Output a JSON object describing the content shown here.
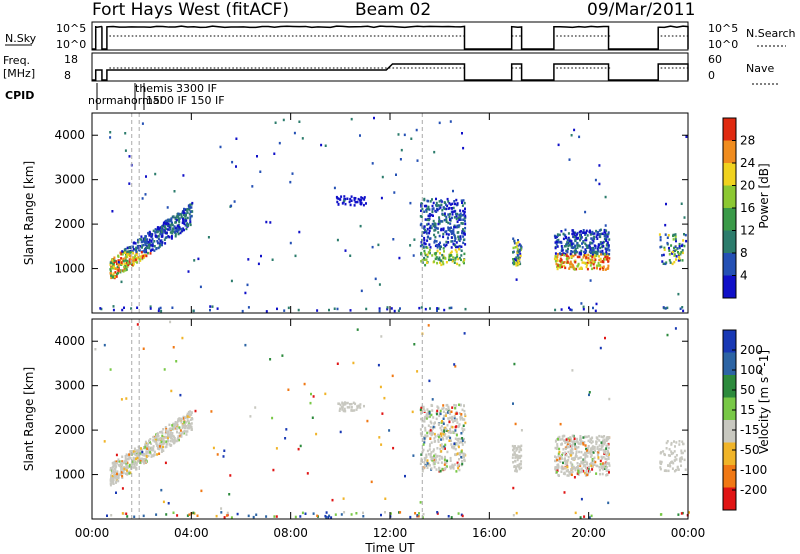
{
  "header": {
    "station": "Fort Hays West (fitACF)",
    "beam": "Beam 02",
    "date": "09/Mar/2011"
  },
  "strip_panels": {
    "nsky": {
      "left_label": "N.Sky",
      "ticks": [
        "10^5",
        "10^0"
      ],
      "right_label": "N.Search",
      "right_ticks": [
        "10^5",
        "10^0"
      ]
    },
    "freq": {
      "left_label_1": "Freq.",
      "left_label_2": "[MHz]",
      "ticks": [
        "18",
        "8"
      ],
      "right_label": "Nave",
      "right_ticks": [
        "60",
        "0"
      ]
    },
    "cpid": {
      "label": "CPID",
      "modes": [
        "normal",
        "themis 3300 IF",
        "normal",
        "1500 IF 150 IF"
      ]
    }
  },
  "chart_data": [
    {
      "type": "heatmap",
      "name": "power",
      "ylabel": "Slant Range [km]",
      "ylim": [
        0,
        4500
      ],
      "yticks": [
        1000,
        2000,
        3000,
        4000
      ],
      "xlim": [
        0,
        24
      ],
      "colorbar_label": "Power [dB]",
      "colorbar_ticks": [
        "4",
        "8",
        "12",
        "16",
        "20",
        "24",
        "28"
      ],
      "colorbar_range": [
        0,
        32
      ]
    },
    {
      "type": "heatmap",
      "name": "velocity",
      "ylabel": "Slant Range [km]",
      "ylim": [
        0,
        4500
      ],
      "yticks": [
        1000,
        2000,
        3000,
        4000
      ],
      "xlabel": "Time UT",
      "xlim": [
        0,
        24
      ],
      "xticks": [
        "00:00",
        "04:00",
        "08:00",
        "12:00",
        "16:00",
        "20:00",
        "00:00"
      ],
      "colorbar_label": "Velocity [m s^-1]",
      "colorbar_ticks": [
        "200",
        "100",
        "50",
        "15",
        "-15",
        "-50",
        "-100",
        "-200"
      ]
    }
  ],
  "data_gaps_hours": [
    [
      15.0,
      16.9
    ],
    [
      17.3,
      18.6
    ],
    [
      20.8,
      22.8
    ]
  ],
  "colors": {
    "power": [
      "#1010c8",
      "#2450b4",
      "#2c7c6c",
      "#3a9a48",
      "#8cc832",
      "#f0d21e",
      "#f08c1e",
      "#e02a10"
    ],
    "velocity": [
      "#1838b4",
      "#2c64a4",
      "#2c8a3c",
      "#78c846",
      "#c8c8c0",
      "#f0b428",
      "#f07814",
      "#e01414"
    ]
  }
}
